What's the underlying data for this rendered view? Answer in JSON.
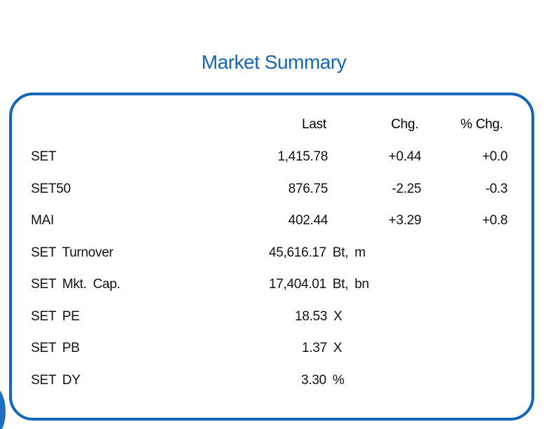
{
  "title": "Market Summary",
  "headers": {
    "last": "Last",
    "chg": "Chg.",
    "pct_chg": "% Chg."
  },
  "indices": [
    {
      "name": "SET",
      "last": "1,415.78",
      "chg": "+0.44",
      "pct_chg": "+0.0"
    },
    {
      "name": "SET50",
      "last": "876.75",
      "chg": "-2.25",
      "pct_chg": "-0.3"
    },
    {
      "name": "MAI",
      "last": "402.44",
      "chg": "+3.29",
      "pct_chg": "+0.8"
    }
  ],
  "stats": [
    {
      "name": "SET Turnover",
      "value": "45,616.17 Bt, m"
    },
    {
      "name": "SET Mkt. Cap.",
      "value": "17,404.01 Bt, bn"
    },
    {
      "name": "SET PE",
      "value": "18.53 X"
    },
    {
      "name": "SET PB",
      "value": "1.37 X"
    },
    {
      "name": "SET DY",
      "value": "3.30 %"
    }
  ],
  "colors": {
    "accent": "#1266b8",
    "title": "#1565b3"
  }
}
